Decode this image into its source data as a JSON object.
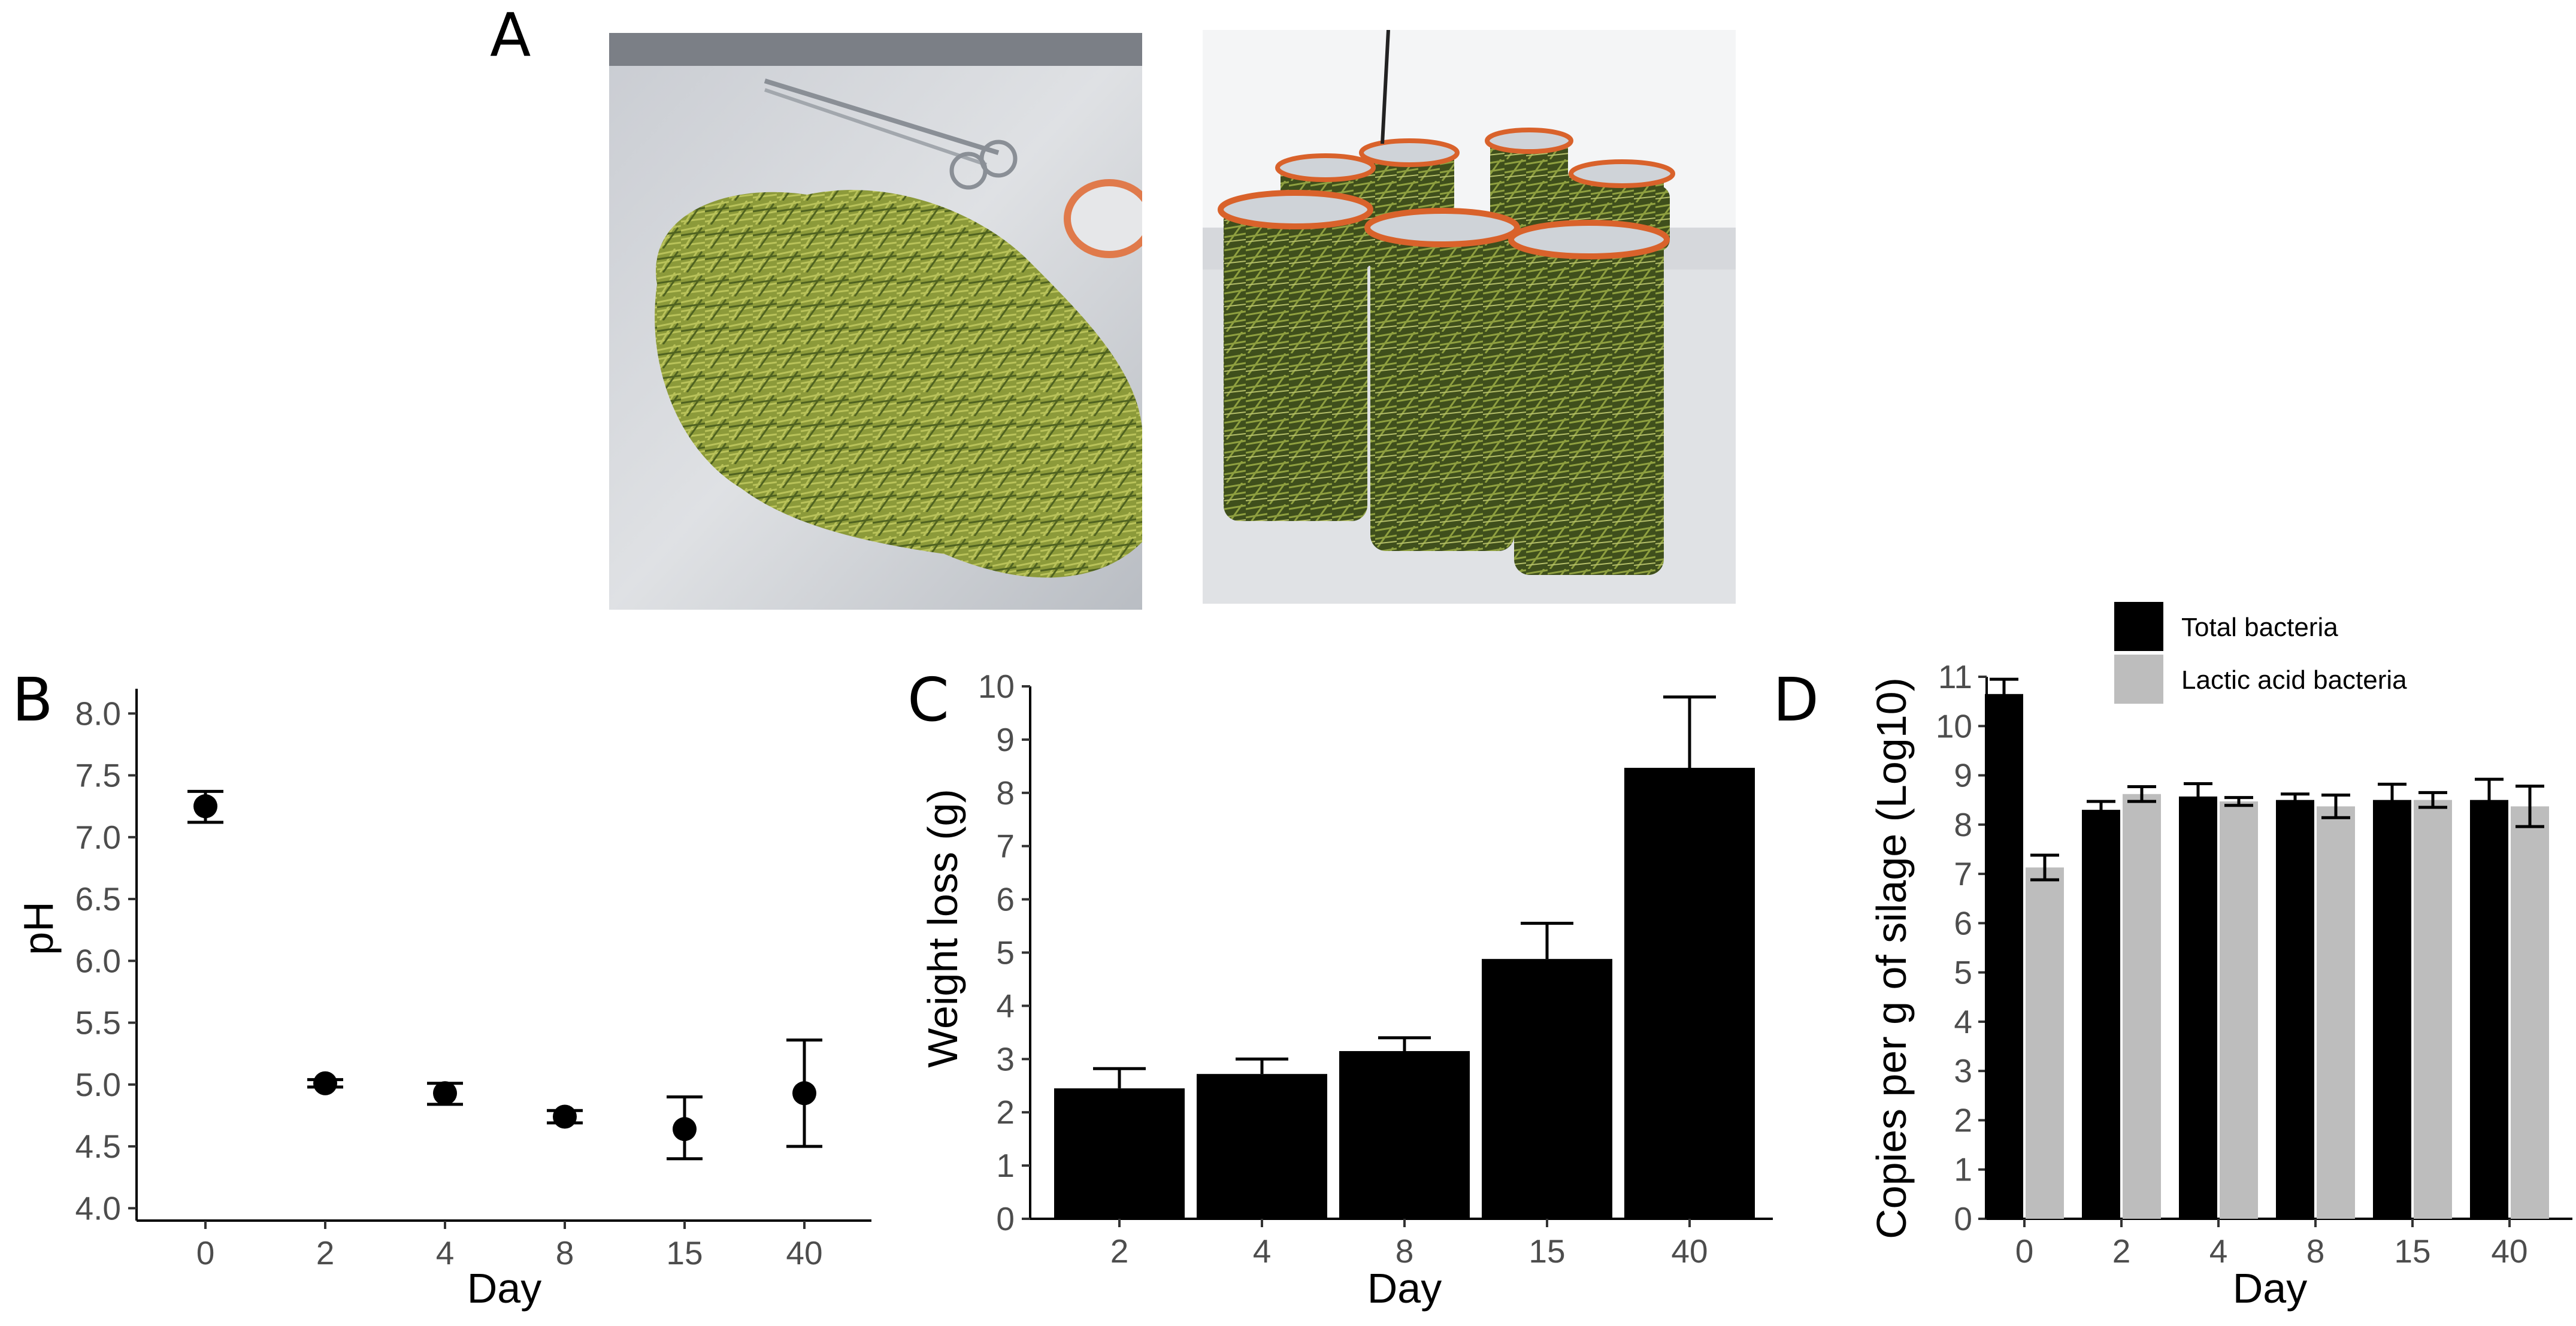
{
  "panels": {
    "A": "A",
    "B": "B",
    "C": "C",
    "D": "D"
  },
  "photos": [
    {
      "subject": "chopped grass on plastic sheet with scissors"
    },
    {
      "subject": "glass jars filled with grass silage"
    }
  ],
  "colors": {
    "black": "#000000",
    "grey": "#bdbdbd",
    "grass_light": "#9aa841",
    "grass_dark": "#4f6220"
  },
  "chart_data": [
    {
      "panel": "B",
      "type": "scatter",
      "xlabel": "Day",
      "ylabel": "pH",
      "categories": [
        "0",
        "2",
        "4",
        "8",
        "15",
        "40"
      ],
      "values": [
        7.25,
        5.01,
        4.93,
        4.74,
        4.64,
        4.93
      ],
      "error_upper": [
        7.37,
        5.04,
        5.01,
        4.79,
        4.9,
        5.36
      ],
      "error_lower": [
        7.12,
        4.98,
        4.84,
        4.69,
        4.4,
        4.5
      ],
      "ylim": [
        3.9,
        8.2
      ],
      "yticks": [
        4.0,
        4.5,
        5.0,
        5.5,
        6.0,
        6.5,
        7.0,
        7.5,
        8.0
      ],
      "ytick_labels": [
        "4.0",
        "4.5",
        "5.0",
        "5.5",
        "6.0",
        "6.5",
        "7.0",
        "7.5",
        "8.0"
      ],
      "grid": false
    },
    {
      "panel": "C",
      "type": "bar",
      "xlabel": "Day",
      "ylabel": "Weight loss (g)",
      "categories": [
        "2",
        "4",
        "8",
        "15",
        "40"
      ],
      "values": [
        2.45,
        2.72,
        3.15,
        4.88,
        8.47
      ],
      "error_upper": [
        2.82,
        3.0,
        3.4,
        5.55,
        9.8
      ],
      "ylim": [
        0,
        10
      ],
      "yticks": [
        0,
        1,
        2,
        3,
        4,
        5,
        6,
        7,
        8,
        9,
        10
      ],
      "ytick_labels": [
        "0",
        "1",
        "2",
        "3",
        "4",
        "5",
        "6",
        "7",
        "8",
        "9",
        "10"
      ],
      "grid": false
    },
    {
      "panel": "D",
      "type": "bar",
      "xlabel": "Day",
      "ylabel": "Copies per g of silage (Log10)",
      "categories": [
        "0",
        "2",
        "4",
        "8",
        "15",
        "40"
      ],
      "series": [
        {
          "name": "Total bacteria",
          "color": "#000000",
          "values": [
            10.65,
            8.3,
            8.57,
            8.5,
            8.5,
            8.5
          ],
          "error_upper": [
            10.95,
            8.47,
            8.83,
            8.62,
            8.82,
            8.92
          ],
          "error_lower": [
            10.35,
            8.13,
            8.31,
            8.38,
            8.18,
            8.08
          ]
        },
        {
          "name": "Lactic acid bacteria",
          "color": "#bdbdbd",
          "values": [
            7.13,
            8.62,
            8.47,
            8.37,
            8.5,
            8.37
          ],
          "error_upper": [
            7.38,
            8.77,
            8.55,
            8.6,
            8.65,
            8.78
          ],
          "error_lower": [
            6.88,
            8.47,
            8.39,
            8.14,
            8.35,
            7.96
          ]
        }
      ],
      "ylim": [
        0,
        11
      ],
      "yticks": [
        0,
        1,
        2,
        3,
        4,
        5,
        6,
        7,
        8,
        9,
        10,
        11
      ],
      "ytick_labels": [
        "0",
        "1",
        "2",
        "3",
        "4",
        "5",
        "6",
        "7",
        "8",
        "9",
        "10",
        "11"
      ],
      "legend_position": "top-right",
      "grid": false
    }
  ]
}
